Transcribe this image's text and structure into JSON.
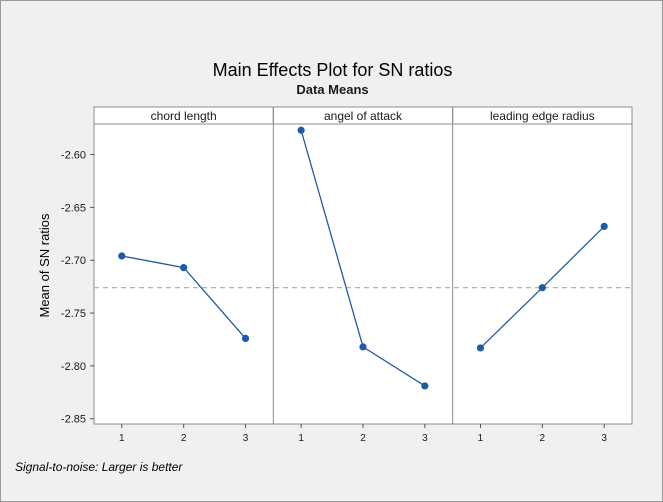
{
  "title": "Main Effects Plot for SN ratios",
  "subtitle": "Data Means",
  "footnote": "Signal-to-noise: Larger is better",
  "chart_data": {
    "type": "line",
    "ylabel": "Mean of SN ratios",
    "ylim": [
      -2.855,
      -2.555
    ],
    "yticks": [
      -2.6,
      -2.65,
      -2.7,
      -2.75,
      -2.8,
      -2.85
    ],
    "ytick_labels": [
      "-2.60",
      "-2.65",
      "-2.70",
      "-2.75",
      "-2.80",
      "-2.85"
    ],
    "x_levels": [
      "1",
      "2",
      "3"
    ],
    "reference_line": -2.726,
    "grid": false,
    "colors": {
      "series": "#1f5aa6",
      "reference": "#a8a8a8",
      "panel_bg": "#ffffff",
      "frame_bg": "#f0f0f0"
    },
    "panels": [
      {
        "name": "chord length",
        "x": [
          "1",
          "2",
          "3"
        ],
        "y": [
          -2.696,
          -2.707,
          -2.774
        ]
      },
      {
        "name": "angel of attack",
        "x": [
          "1",
          "2",
          "3"
        ],
        "y": [
          -2.577,
          -2.782,
          -2.819
        ]
      },
      {
        "name": "leading edge radius",
        "x": [
          "1",
          "2",
          "3"
        ],
        "y": [
          -2.783,
          -2.726,
          -2.668
        ]
      }
    ]
  }
}
